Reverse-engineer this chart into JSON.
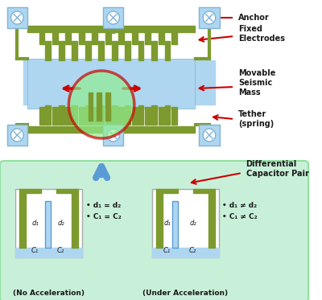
{
  "bg_color": "#ffffff",
  "light_blue": "#aed6f1",
  "olive_green": "#7d9a2e",
  "dark_olive": "#5a7a1a",
  "light_green_bg": "#c8f0d8",
  "red_arrow": "#cc0000",
  "blue_arrow": "#5b9bd5",
  "anchor_color": "#aed6f1",
  "anchor_border": "#7fb3d3",
  "text_color": "#1a1a1a",
  "label_anchor": "Anchor",
  "label_fixed": "Fixed\nElectrodes",
  "label_movable": "Movable\nSeismic\nMass",
  "label_tether": "Tether\n(spring)",
  "label_diff_cap": "Differential\nCapacitor Pair",
  "label_no_accel": "(No Acceleration)",
  "label_under_accel": "(Under Acceleration)",
  "bullet_no_accel": [
    "d₁ = d₂",
    "C₁ = C₂"
  ],
  "bullet_under_accel": [
    "d₁ ≠ d₂",
    "C₁ ≠ C₂"
  ]
}
